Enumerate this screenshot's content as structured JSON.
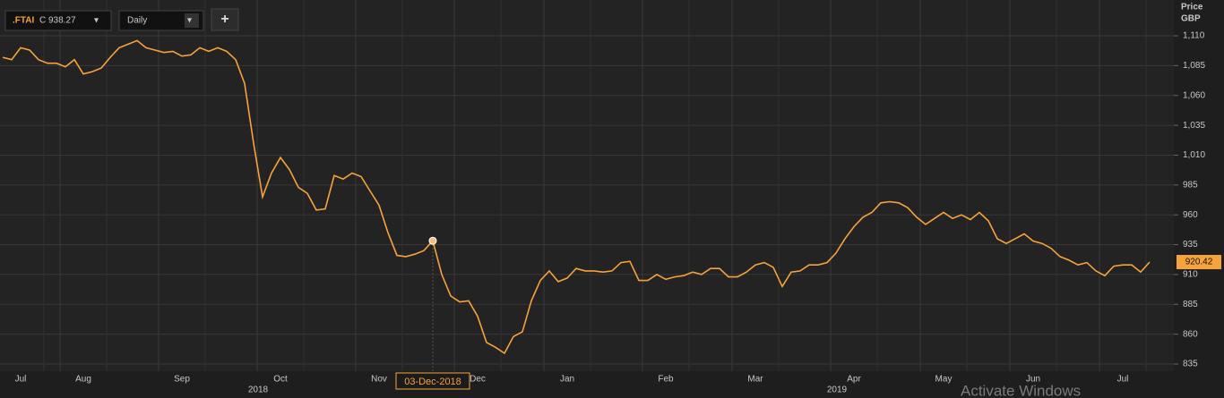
{
  "chart_data": {
    "type": "line",
    "ticker": ".FTAI",
    "quote": "C 938.27",
    "interval": "Daily",
    "add_button": "+",
    "axis_title": [
      "Price",
      "GBP"
    ],
    "last_label": "920.42",
    "tooltip": "03-Dec-2018",
    "years": [
      "2018",
      "2019"
    ],
    "watermark": "Activate Windows",
    "color": "#f7a33b",
    "grid": true,
    "categories": [
      null,
      null,
      "Jul",
      null,
      null,
      null,
      null,
      null,
      null,
      "Aug",
      null,
      null,
      null,
      null,
      null,
      null,
      null,
      null,
      null,
      null,
      "Sep",
      null,
      null,
      null,
      null,
      null,
      null,
      null,
      null,
      null,
      null,
      "Oct",
      null,
      null,
      null,
      null,
      null,
      null,
      null,
      null,
      null,
      null,
      "Nov",
      null,
      null,
      null,
      null,
      null,
      null,
      null,
      null,
      null,
      null,
      "Dec",
      null,
      null,
      null,
      null,
      null,
      null,
      null,
      null,
      null,
      "Jan",
      null,
      null,
      null,
      null,
      null,
      null,
      null,
      null,
      null,
      null,
      "Feb",
      null,
      null,
      null,
      null,
      null,
      null,
      null,
      null,
      null,
      "Mar",
      null,
      null,
      null,
      null,
      null,
      null,
      null,
      null,
      null,
      null,
      "Apr",
      null,
      null,
      null,
      null,
      null,
      null,
      null,
      null,
      null,
      "May",
      null,
      null,
      null,
      null,
      null,
      null,
      null,
      null,
      null,
      "Jun",
      null,
      null,
      null,
      null,
      null,
      null,
      null,
      null,
      null,
      "Jul",
      null,
      null,
      null
    ],
    "values": [
      1092,
      1090,
      1100,
      1098,
      1090,
      1087,
      1087,
      1084,
      1090,
      1078,
      1080,
      1083,
      1092,
      1100,
      1103,
      1106,
      1100,
      1098,
      1096,
      1097,
      1093,
      1094,
      1100,
      1097,
      1100,
      1097,
      1090,
      1070,
      1020,
      975,
      995,
      1008,
      998,
      983,
      978,
      964,
      965,
      993,
      990,
      995,
      992,
      980,
      968,
      945,
      926,
      925,
      927,
      930,
      938.27,
      910,
      892,
      887,
      888,
      875,
      853,
      849,
      844,
      858,
      862,
      888,
      905,
      913,
      904,
      907,
      915,
      913,
      913,
      912,
      913,
      920,
      921,
      905,
      905,
      910,
      906,
      908,
      909,
      912,
      910,
      915,
      915,
      908,
      908,
      912,
      918,
      920,
      916,
      900,
      912,
      913,
      918,
      918,
      920,
      928,
      940,
      950,
      958,
      962,
      970,
      971,
      970,
      966,
      958,
      952,
      957,
      962,
      957,
      960,
      956,
      962,
      955,
      940,
      936,
      940,
      944,
      938,
      936,
      932,
      925,
      922,
      918,
      920,
      913,
      909,
      917,
      918,
      918,
      912,
      920.42
    ],
    "marker_index": 48,
    "ylim": [
      829,
      1140
    ],
    "yticks": [
      {
        "value": 1110,
        "label": "1,110"
      },
      {
        "value": 1085,
        "label": "1,085"
      },
      {
        "value": 1060,
        "label": "1,060"
      },
      {
        "value": 1035,
        "label": "1,035"
      },
      {
        "value": 1010,
        "label": "1,010"
      },
      985,
      960,
      935,
      910,
      885,
      860,
      835
    ]
  }
}
